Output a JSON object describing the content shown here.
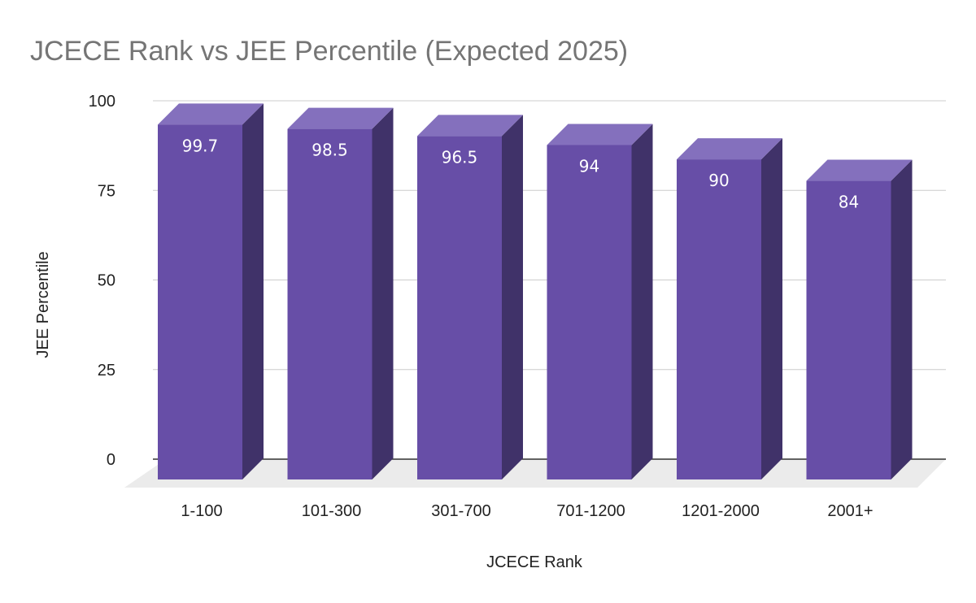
{
  "chart_data": {
    "type": "bar",
    "title": "JCECE Rank vs JEE Percentile (Expected  2025)",
    "xlabel": "JCECE Rank",
    "ylabel": "JEE Percentile",
    "categories": [
      "1-100",
      "101-300",
      "301-700",
      "701-1200",
      "1201-2000",
      "2001+"
    ],
    "values": [
      99.7,
      98.5,
      96.5,
      94,
      90,
      84
    ],
    "data_labels": [
      "99.7",
      "98.5",
      "96.5",
      "94",
      "90",
      "84"
    ],
    "yticks": [
      "0",
      "25",
      "50",
      "75",
      "100"
    ],
    "ylim": [
      0,
      100
    ],
    "grid": true,
    "legend": "none",
    "style": "3d",
    "colors": {
      "bar_front": "#674ea7",
      "bar_top": "#8470bd",
      "bar_side": "#403269",
      "grid": "#cccccc",
      "floor": "#ebebeb",
      "title": "#757575"
    }
  }
}
